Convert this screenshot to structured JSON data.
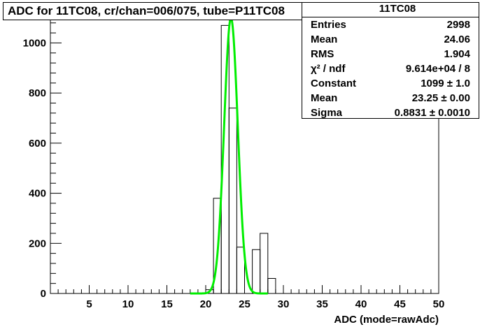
{
  "title": "ADC for 11TC08,  cr/chan=006/075,  tube=P11TC08",
  "stats": {
    "name": "11TC08",
    "rows": [
      {
        "label": "Entries",
        "value": "2998"
      },
      {
        "label": "Mean",
        "value": "24.06"
      },
      {
        "label": "RMS",
        "value": "1.904"
      },
      {
        "label": "χ² / ndf",
        "value": "9.614e+04 / 8"
      },
      {
        "label": "Constant",
        "value": "1099 ± 1.0"
      },
      {
        "label": "Mean",
        "value": "23.25 ± 0.00"
      },
      {
        "label": "Sigma",
        "value": "0.8831 ± 0.0010"
      }
    ]
  },
  "chart_data": {
    "type": "bar",
    "title": "ADC for 11TC08,  cr/chan=006/075,  tube=P11TC08",
    "xlabel": "ADC (mode=rawAdc)",
    "ylabel": "",
    "xlim": [
      0,
      50
    ],
    "ylim": [
      0,
      1110
    ],
    "x_ticks": [
      5,
      10,
      15,
      20,
      25,
      30,
      35,
      40,
      45,
      50
    ],
    "y_ticks": [
      0,
      200,
      400,
      600,
      800,
      1000
    ],
    "bins": [
      {
        "x0": 18,
        "x1": 19,
        "value": 0
      },
      {
        "x0": 19,
        "x1": 20,
        "value": 2
      },
      {
        "x0": 20,
        "x1": 21,
        "value": 15
      },
      {
        "x0": 21,
        "x1": 22,
        "value": 380
      },
      {
        "x0": 22,
        "x1": 23,
        "value": 1070
      },
      {
        "x0": 23,
        "x1": 24,
        "value": 740
      },
      {
        "x0": 24,
        "x1": 25,
        "value": 185
      },
      {
        "x0": 25,
        "x1": 26,
        "value": 0
      },
      {
        "x0": 26,
        "x1": 27,
        "value": 175
      },
      {
        "x0": 27,
        "x1": 28,
        "value": 240
      },
      {
        "x0": 28,
        "x1": 29,
        "value": 60
      },
      {
        "x0": 29,
        "x1": 30,
        "value": 0
      }
    ],
    "fit": {
      "type": "gaussian",
      "constant": 1099,
      "mean": 23.25,
      "sigma": 0.8831,
      "range": [
        18,
        28
      ],
      "color": "#00ee00"
    },
    "colors": {
      "histogram": "#000000",
      "fit": "#00ee00"
    }
  }
}
